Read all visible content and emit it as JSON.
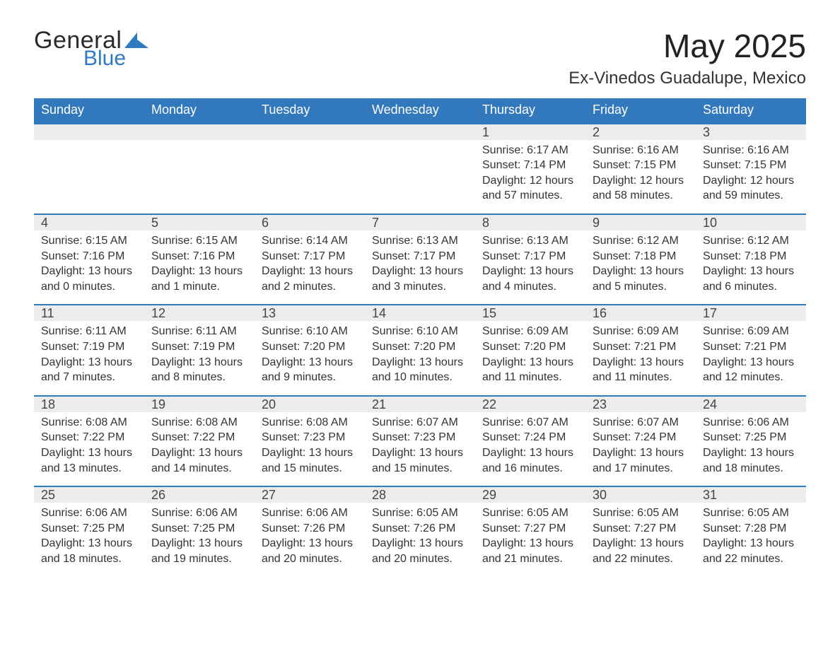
{
  "brand": {
    "part1": "General",
    "part2": "Blue",
    "accent_color": "#2f7ac0"
  },
  "header": {
    "title": "May 2025",
    "location": "Ex-Vinedos Guadalupe, Mexico"
  },
  "colors": {
    "header_bg": "#3278bd",
    "header_text": "#ffffff",
    "daynum_bg": "#ececec",
    "rule": "#3278bd",
    "text": "#333333"
  },
  "weekdays": [
    "Sunday",
    "Monday",
    "Tuesday",
    "Wednesday",
    "Thursday",
    "Friday",
    "Saturday"
  ],
  "weeks": [
    [
      null,
      null,
      null,
      null,
      {
        "n": "1",
        "sunrise": "Sunrise: 6:17 AM",
        "sunset": "Sunset: 7:14 PM",
        "daylight1": "Daylight: 12 hours",
        "daylight2": "and 57 minutes."
      },
      {
        "n": "2",
        "sunrise": "Sunrise: 6:16 AM",
        "sunset": "Sunset: 7:15 PM",
        "daylight1": "Daylight: 12 hours",
        "daylight2": "and 58 minutes."
      },
      {
        "n": "3",
        "sunrise": "Sunrise: 6:16 AM",
        "sunset": "Sunset: 7:15 PM",
        "daylight1": "Daylight: 12 hours",
        "daylight2": "and 59 minutes."
      }
    ],
    [
      {
        "n": "4",
        "sunrise": "Sunrise: 6:15 AM",
        "sunset": "Sunset: 7:16 PM",
        "daylight1": "Daylight: 13 hours",
        "daylight2": "and 0 minutes."
      },
      {
        "n": "5",
        "sunrise": "Sunrise: 6:15 AM",
        "sunset": "Sunset: 7:16 PM",
        "daylight1": "Daylight: 13 hours",
        "daylight2": "and 1 minute."
      },
      {
        "n": "6",
        "sunrise": "Sunrise: 6:14 AM",
        "sunset": "Sunset: 7:17 PM",
        "daylight1": "Daylight: 13 hours",
        "daylight2": "and 2 minutes."
      },
      {
        "n": "7",
        "sunrise": "Sunrise: 6:13 AM",
        "sunset": "Sunset: 7:17 PM",
        "daylight1": "Daylight: 13 hours",
        "daylight2": "and 3 minutes."
      },
      {
        "n": "8",
        "sunrise": "Sunrise: 6:13 AM",
        "sunset": "Sunset: 7:17 PM",
        "daylight1": "Daylight: 13 hours",
        "daylight2": "and 4 minutes."
      },
      {
        "n": "9",
        "sunrise": "Sunrise: 6:12 AM",
        "sunset": "Sunset: 7:18 PM",
        "daylight1": "Daylight: 13 hours",
        "daylight2": "and 5 minutes."
      },
      {
        "n": "10",
        "sunrise": "Sunrise: 6:12 AM",
        "sunset": "Sunset: 7:18 PM",
        "daylight1": "Daylight: 13 hours",
        "daylight2": "and 6 minutes."
      }
    ],
    [
      {
        "n": "11",
        "sunrise": "Sunrise: 6:11 AM",
        "sunset": "Sunset: 7:19 PM",
        "daylight1": "Daylight: 13 hours",
        "daylight2": "and 7 minutes."
      },
      {
        "n": "12",
        "sunrise": "Sunrise: 6:11 AM",
        "sunset": "Sunset: 7:19 PM",
        "daylight1": "Daylight: 13 hours",
        "daylight2": "and 8 minutes."
      },
      {
        "n": "13",
        "sunrise": "Sunrise: 6:10 AM",
        "sunset": "Sunset: 7:20 PM",
        "daylight1": "Daylight: 13 hours",
        "daylight2": "and 9 minutes."
      },
      {
        "n": "14",
        "sunrise": "Sunrise: 6:10 AM",
        "sunset": "Sunset: 7:20 PM",
        "daylight1": "Daylight: 13 hours",
        "daylight2": "and 10 minutes."
      },
      {
        "n": "15",
        "sunrise": "Sunrise: 6:09 AM",
        "sunset": "Sunset: 7:20 PM",
        "daylight1": "Daylight: 13 hours",
        "daylight2": "and 11 minutes."
      },
      {
        "n": "16",
        "sunrise": "Sunrise: 6:09 AM",
        "sunset": "Sunset: 7:21 PM",
        "daylight1": "Daylight: 13 hours",
        "daylight2": "and 11 minutes."
      },
      {
        "n": "17",
        "sunrise": "Sunrise: 6:09 AM",
        "sunset": "Sunset: 7:21 PM",
        "daylight1": "Daylight: 13 hours",
        "daylight2": "and 12 minutes."
      }
    ],
    [
      {
        "n": "18",
        "sunrise": "Sunrise: 6:08 AM",
        "sunset": "Sunset: 7:22 PM",
        "daylight1": "Daylight: 13 hours",
        "daylight2": "and 13 minutes."
      },
      {
        "n": "19",
        "sunrise": "Sunrise: 6:08 AM",
        "sunset": "Sunset: 7:22 PM",
        "daylight1": "Daylight: 13 hours",
        "daylight2": "and 14 minutes."
      },
      {
        "n": "20",
        "sunrise": "Sunrise: 6:08 AM",
        "sunset": "Sunset: 7:23 PM",
        "daylight1": "Daylight: 13 hours",
        "daylight2": "and 15 minutes."
      },
      {
        "n": "21",
        "sunrise": "Sunrise: 6:07 AM",
        "sunset": "Sunset: 7:23 PM",
        "daylight1": "Daylight: 13 hours",
        "daylight2": "and 15 minutes."
      },
      {
        "n": "22",
        "sunrise": "Sunrise: 6:07 AM",
        "sunset": "Sunset: 7:24 PM",
        "daylight1": "Daylight: 13 hours",
        "daylight2": "and 16 minutes."
      },
      {
        "n": "23",
        "sunrise": "Sunrise: 6:07 AM",
        "sunset": "Sunset: 7:24 PM",
        "daylight1": "Daylight: 13 hours",
        "daylight2": "and 17 minutes."
      },
      {
        "n": "24",
        "sunrise": "Sunrise: 6:06 AM",
        "sunset": "Sunset: 7:25 PM",
        "daylight1": "Daylight: 13 hours",
        "daylight2": "and 18 minutes."
      }
    ],
    [
      {
        "n": "25",
        "sunrise": "Sunrise: 6:06 AM",
        "sunset": "Sunset: 7:25 PM",
        "daylight1": "Daylight: 13 hours",
        "daylight2": "and 18 minutes."
      },
      {
        "n": "26",
        "sunrise": "Sunrise: 6:06 AM",
        "sunset": "Sunset: 7:25 PM",
        "daylight1": "Daylight: 13 hours",
        "daylight2": "and 19 minutes."
      },
      {
        "n": "27",
        "sunrise": "Sunrise: 6:06 AM",
        "sunset": "Sunset: 7:26 PM",
        "daylight1": "Daylight: 13 hours",
        "daylight2": "and 20 minutes."
      },
      {
        "n": "28",
        "sunrise": "Sunrise: 6:05 AM",
        "sunset": "Sunset: 7:26 PM",
        "daylight1": "Daylight: 13 hours",
        "daylight2": "and 20 minutes."
      },
      {
        "n": "29",
        "sunrise": "Sunrise: 6:05 AM",
        "sunset": "Sunset: 7:27 PM",
        "daylight1": "Daylight: 13 hours",
        "daylight2": "and 21 minutes."
      },
      {
        "n": "30",
        "sunrise": "Sunrise: 6:05 AM",
        "sunset": "Sunset: 7:27 PM",
        "daylight1": "Daylight: 13 hours",
        "daylight2": "and 22 minutes."
      },
      {
        "n": "31",
        "sunrise": "Sunrise: 6:05 AM",
        "sunset": "Sunset: 7:28 PM",
        "daylight1": "Daylight: 13 hours",
        "daylight2": "and 22 minutes."
      }
    ]
  ]
}
